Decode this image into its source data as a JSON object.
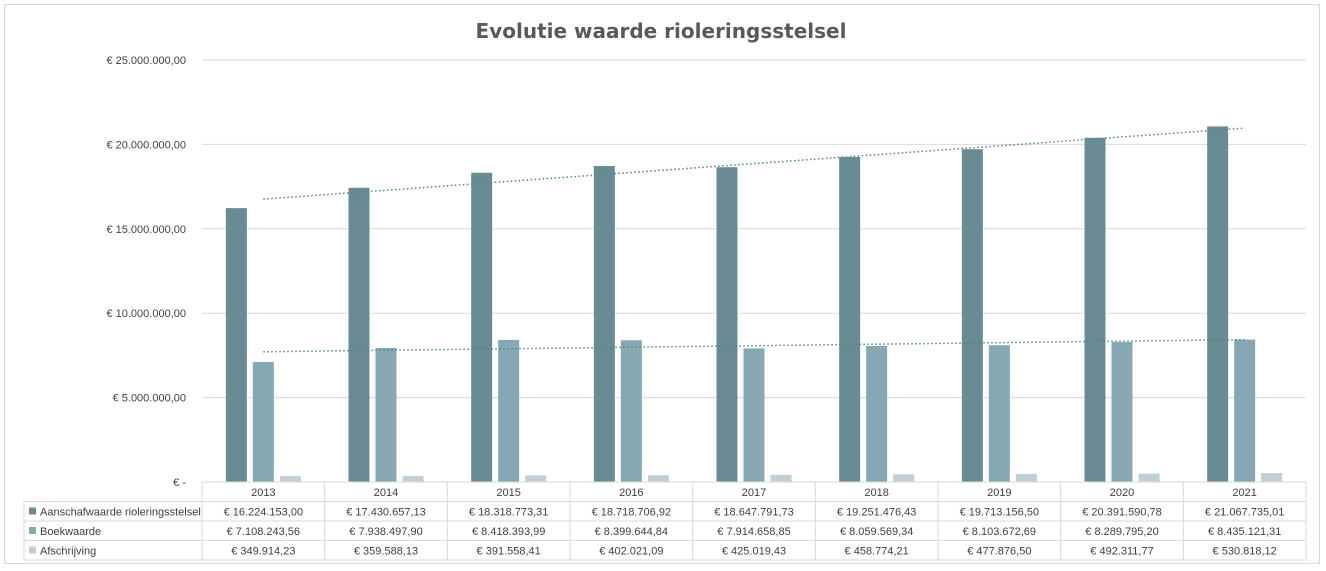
{
  "chart_data": {
    "type": "bar",
    "title": "Evolutie waarde rioleringsstelsel",
    "categories": [
      "2013",
      "2014",
      "2015",
      "2016",
      "2017",
      "2018",
      "2019",
      "2020",
      "2021"
    ],
    "ylim": [
      0,
      25000000
    ],
    "y_ticks": [
      0,
      5000000,
      10000000,
      15000000,
      20000000,
      25000000
    ],
    "y_tick_labels": [
      "€ -",
      "€ 5.000.000,00",
      "€ 10.000.000,00",
      "€ 15.000.000,00",
      "€ 20.000.000,00",
      "€ 25.000.000,00"
    ],
    "grid": true,
    "legend": "data-table",
    "series": [
      {
        "name": "Aanschafwaarde rioleringsstelsel",
        "color": "#6b8b94",
        "values": [
          16224153.0,
          17430657.13,
          18318773.31,
          18718706.92,
          18647791.73,
          19251476.43,
          19713156.5,
          20391590.78,
          21067735.01
        ],
        "labels": [
          "€ 16.224.153,00",
          "€ 17.430.657,13",
          "€ 18.318.773,31",
          "€ 18.718.706,92",
          "€ 18.647.791,73",
          "€ 19.251.476,43",
          "€ 19.713.156,50",
          "€ 20.391.590,78",
          "€ 21.067.735,01"
        ],
        "trendline": "linear"
      },
      {
        "name": "Boekwaarde",
        "color": "#85a8b2",
        "values": [
          7108243.56,
          7938497.9,
          8418393.99,
          8399644.84,
          7914658.85,
          8059569.34,
          8103672.69,
          8289795.2,
          8435121.31
        ],
        "labels": [
          "€ 7.108.243,56",
          "€ 7.938.497,90",
          "€ 8.418.393,99",
          "€ 8.399.644,84",
          "€ 7.914.658,85",
          "€ 8.059.569,34",
          "€ 8.103.672,69",
          "€ 8.289.795,20",
          "€ 8.435.121,31"
        ],
        "trendline": "linear"
      },
      {
        "name": "Afschrijving",
        "color": "#bfcfd4",
        "values": [
          349914.23,
          359588.13,
          391558.41,
          402021.09,
          425019.43,
          458774.21,
          477876.5,
          492311.77,
          530818.12
        ],
        "labels": [
          "€ 349.914,23",
          "€ 359.588,13",
          "€ 391.558,41",
          "€ 402.021,09",
          "€ 425.019,43",
          "€ 458.774,21",
          "€ 477.876,50",
          "€ 492.311,77",
          "€ 530.818,12"
        ]
      }
    ]
  }
}
